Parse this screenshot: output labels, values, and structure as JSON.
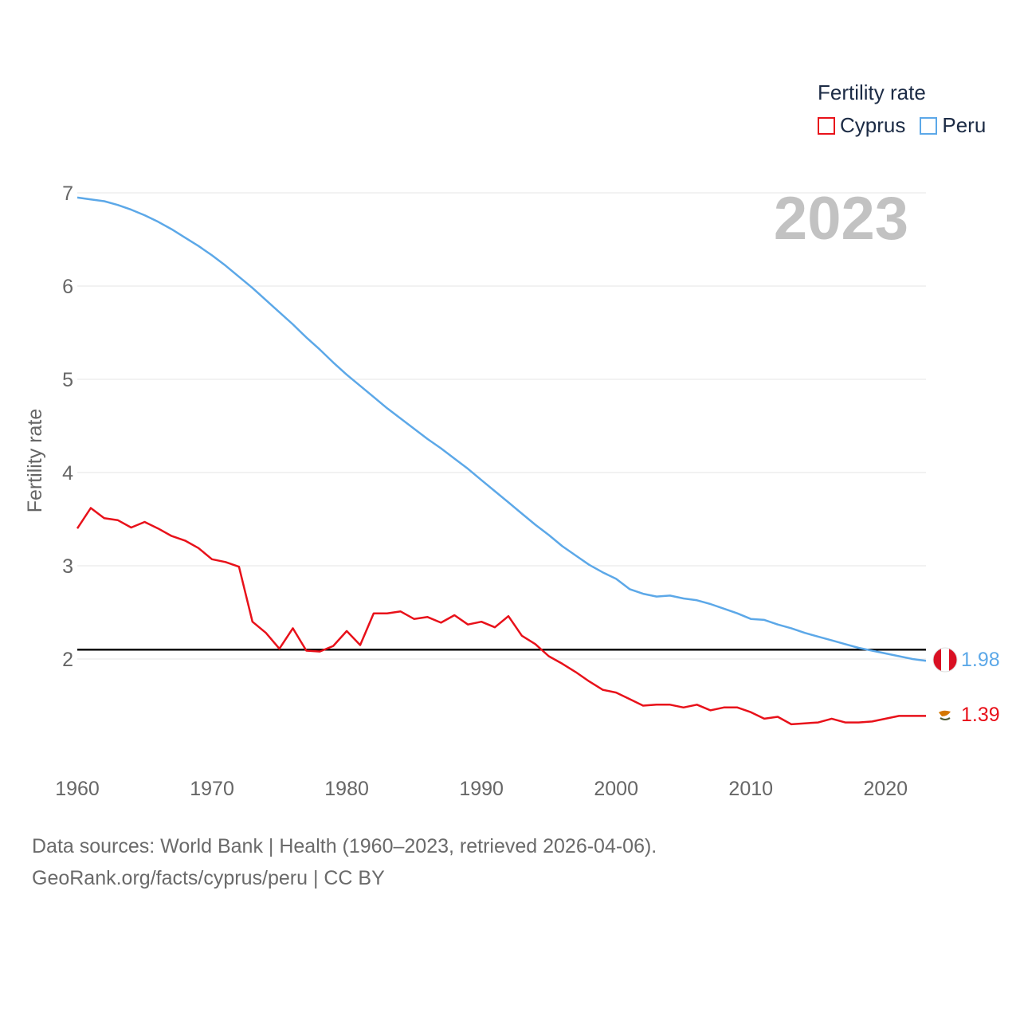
{
  "chart_data": {
    "type": "line",
    "year_label": "2023",
    "ylabel": "Fertility rate",
    "xlim": [
      1960,
      2023
    ],
    "ylim": [
      1,
      7
    ],
    "x_ticks": [
      1960,
      1970,
      1980,
      1990,
      2000,
      2010,
      2020
    ],
    "y_ticks": [
      2,
      3,
      4,
      5,
      6,
      7
    ],
    "reference_line": 2.1,
    "legend": {
      "title": "Fertility rate",
      "entries": [
        "Cyprus",
        "Peru"
      ]
    },
    "x": [
      1960,
      1961,
      1962,
      1963,
      1964,
      1965,
      1966,
      1967,
      1968,
      1969,
      1970,
      1971,
      1972,
      1973,
      1974,
      1975,
      1976,
      1977,
      1978,
      1979,
      1980,
      1981,
      1982,
      1983,
      1984,
      1985,
      1986,
      1987,
      1988,
      1989,
      1990,
      1991,
      1992,
      1993,
      1994,
      1995,
      1996,
      1997,
      1998,
      1999,
      2000,
      2001,
      2002,
      2003,
      2004,
      2005,
      2006,
      2007,
      2008,
      2009,
      2010,
      2011,
      2012,
      2013,
      2014,
      2015,
      2016,
      2017,
      2018,
      2019,
      2020,
      2021,
      2022,
      2023
    ],
    "series": [
      {
        "name": "Cyprus",
        "color": "#e8111a",
        "end_label": "1.39",
        "values": [
          3.4,
          3.62,
          3.51,
          3.49,
          3.41,
          3.47,
          3.4,
          3.32,
          3.27,
          3.19,
          3.07,
          3.04,
          2.99,
          2.4,
          2.28,
          2.11,
          2.33,
          2.09,
          2.08,
          2.14,
          2.3,
          2.15,
          2.49,
          2.49,
          2.51,
          2.43,
          2.45,
          2.39,
          2.47,
          2.37,
          2.4,
          2.34,
          2.46,
          2.25,
          2.16,
          2.03,
          1.95,
          1.86,
          1.76,
          1.67,
          1.64,
          1.57,
          1.5,
          1.51,
          1.51,
          1.48,
          1.51,
          1.45,
          1.48,
          1.48,
          1.43,
          1.36,
          1.38,
          1.3,
          1.31,
          1.32,
          1.36,
          1.32,
          1.32,
          1.33,
          1.36,
          1.39,
          1.39,
          1.39
        ]
      },
      {
        "name": "Peru",
        "color": "#5ca8e8",
        "end_label": "1.98",
        "values": [
          6.95,
          6.93,
          6.91,
          6.87,
          6.82,
          6.76,
          6.69,
          6.61,
          6.52,
          6.43,
          6.33,
          6.22,
          6.1,
          5.98,
          5.85,
          5.72,
          5.59,
          5.45,
          5.32,
          5.18,
          5.05,
          4.93,
          4.81,
          4.69,
          4.58,
          4.47,
          4.36,
          4.26,
          4.15,
          4.04,
          3.92,
          3.8,
          3.68,
          3.56,
          3.44,
          3.33,
          3.21,
          3.11,
          3.01,
          2.93,
          2.86,
          2.75,
          2.7,
          2.67,
          2.68,
          2.65,
          2.63,
          2.59,
          2.54,
          2.49,
          2.43,
          2.42,
          2.37,
          2.33,
          2.28,
          2.24,
          2.2,
          2.16,
          2.12,
          2.09,
          2.06,
          2.03,
          2.0,
          1.98
        ]
      }
    ]
  },
  "footer": {
    "line1": "Data sources: World Bank | Health (1960–2023, retrieved 2026-04-06).",
    "line2": "GeoRank.org/facts/cyprus/peru | CC BY"
  }
}
